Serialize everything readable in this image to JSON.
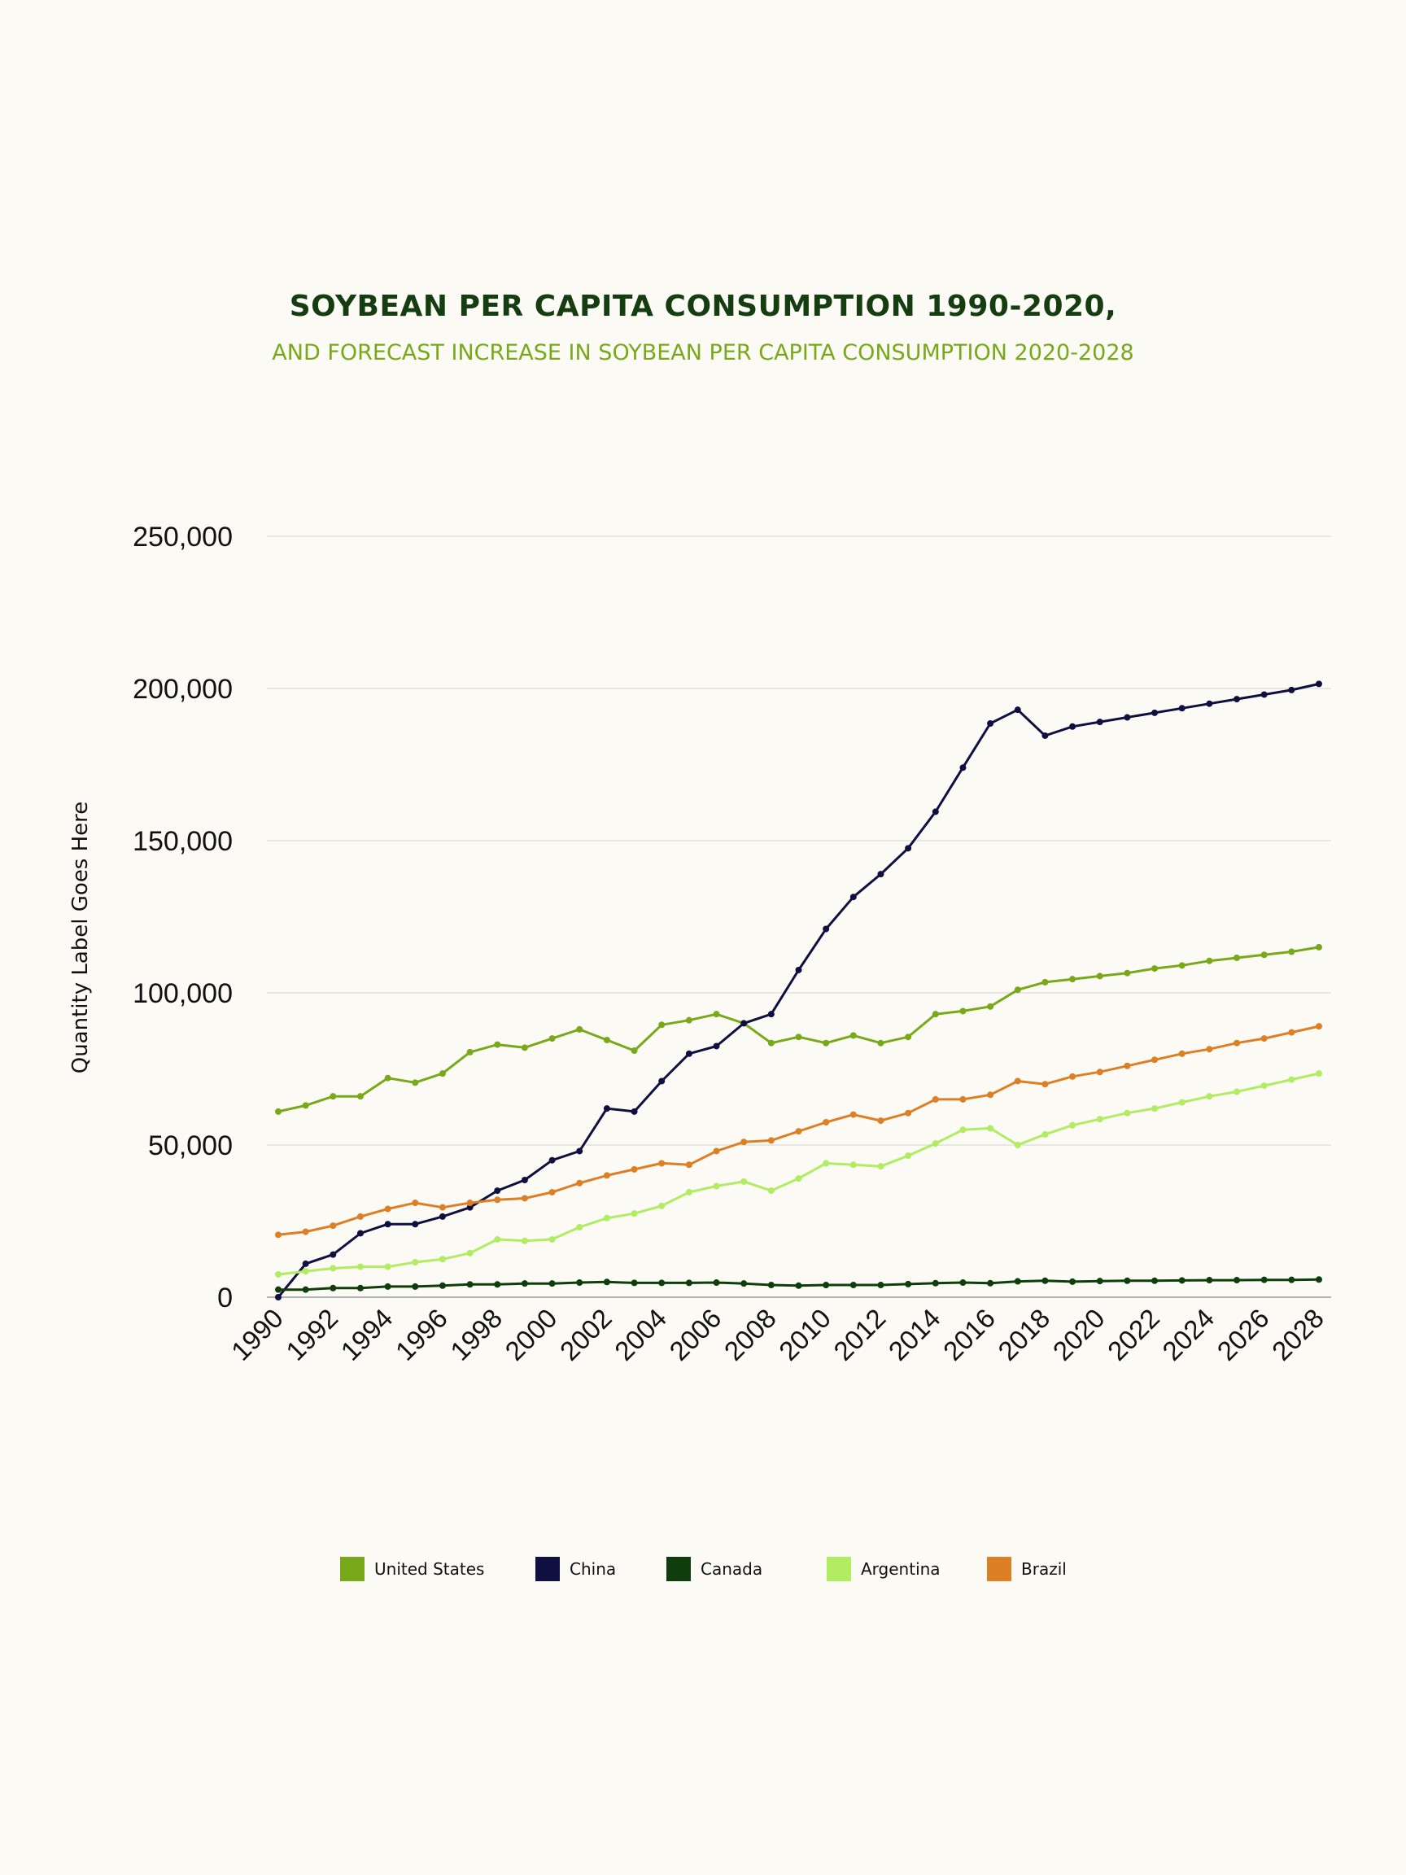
{
  "title": "SOYBEAN PER CAPITA CONSUMPTION 1990-2020,",
  "subtitle": "AND FORECAST INCREASE IN SOYBEAN PER CAPITA CONSUMPTION 2020-2028",
  "chart_data": {
    "type": "line",
    "title": "SOYBEAN PER CAPITA CONSUMPTION 1990-2020,",
    "subtitle": "AND FORECAST INCREASE IN SOYBEAN PER CAPITA CONSUMPTION 2020-2028",
    "xlabel": "",
    "ylabel": "Quantity Label Goes Here",
    "ylim": [
      0,
      250000
    ],
    "yticks": [
      0,
      50000,
      100000,
      150000,
      200000,
      250000
    ],
    "ytick_labels": [
      "0",
      "50,000",
      "100,000",
      "150,000",
      "200,000",
      "250,000"
    ],
    "x": [
      1990,
      1991,
      1992,
      1993,
      1994,
      1995,
      1996,
      1997,
      1998,
      1999,
      2000,
      2001,
      2002,
      2003,
      2004,
      2005,
      2006,
      2007,
      2008,
      2009,
      2010,
      2011,
      2012,
      2013,
      2014,
      2015,
      2016,
      2017,
      2018,
      2019,
      2020,
      2021,
      2022,
      2023,
      2024,
      2025,
      2026,
      2027,
      2028
    ],
    "xtick_labels": [
      "1990",
      "1992",
      "1994",
      "1996",
      "1998",
      "2000",
      "2002",
      "2004",
      "2006",
      "2008",
      "2010",
      "2012",
      "2014",
      "2016",
      "2018",
      "2020",
      "2022",
      "2024",
      "2026",
      "2028"
    ],
    "grid": true,
    "legend_position": "bottom",
    "series": [
      {
        "name": "United States",
        "color": "#79a91a",
        "values": [
          61000,
          63000,
          66000,
          66000,
          72000,
          70500,
          73500,
          80500,
          83000,
          82000,
          85000,
          88000,
          84500,
          81000,
          89500,
          91000,
          93000,
          90000,
          83500,
          85500,
          83500,
          86000,
          83500,
          85500,
          93000,
          94000,
          95500,
          101000,
          103500,
          104500,
          105500,
          106500,
          108000,
          109000,
          110500,
          111500,
          112500,
          113500,
          115000
        ]
      },
      {
        "name": "China",
        "color": "#0f1040",
        "values": [
          0,
          11000,
          14000,
          21000,
          24000,
          24000,
          26500,
          29500,
          35000,
          38500,
          45000,
          48000,
          62000,
          61000,
          71000,
          80000,
          82500,
          90000,
          93000,
          107500,
          121000,
          131500,
          139000,
          147500,
          159500,
          174000,
          188500,
          193000,
          184500,
          187500,
          189000,
          190500,
          192000,
          193500,
          195000,
          196500,
          198000,
          199500,
          201500
        ]
      },
      {
        "name": "Canada",
        "color": "#0f3d0b",
        "values": [
          2500,
          2500,
          3000,
          3000,
          3500,
          3500,
          3800,
          4200,
          4200,
          4500,
          4500,
          4800,
          5000,
          4700,
          4700,
          4700,
          4800,
          4500,
          4000,
          3800,
          4000,
          4000,
          4000,
          4300,
          4600,
          4800,
          4600,
          5200,
          5400,
          5100,
          5300,
          5400,
          5400,
          5500,
          5600,
          5600,
          5700,
          5700,
          5800
        ]
      },
      {
        "name": "Argentina",
        "color": "#b1ec63",
        "values": [
          7500,
          8500,
          9500,
          10000,
          10000,
          11500,
          12500,
          14500,
          19000,
          18500,
          19000,
          23000,
          26000,
          27500,
          30000,
          34500,
          36500,
          38000,
          35000,
          39000,
          44000,
          43500,
          43000,
          46500,
          50500,
          55000,
          55500,
          50000,
          53500,
          56500,
          58500,
          60500,
          62000,
          64000,
          66000,
          67500,
          69500,
          71500,
          73500
        ]
      },
      {
        "name": "Brazil",
        "color": "#dd7f25",
        "values": [
          20500,
          21500,
          23500,
          26500,
          29000,
          31000,
          29500,
          31000,
          32000,
          32500,
          34500,
          37500,
          40000,
          42000,
          44000,
          43500,
          48000,
          51000,
          51500,
          54500,
          57500,
          60000,
          58000,
          60500,
          65000,
          65000,
          66500,
          71000,
          70000,
          72500,
          74000,
          76000,
          78000,
          80000,
          81500,
          83500,
          85000,
          87000,
          89000
        ]
      }
    ]
  }
}
